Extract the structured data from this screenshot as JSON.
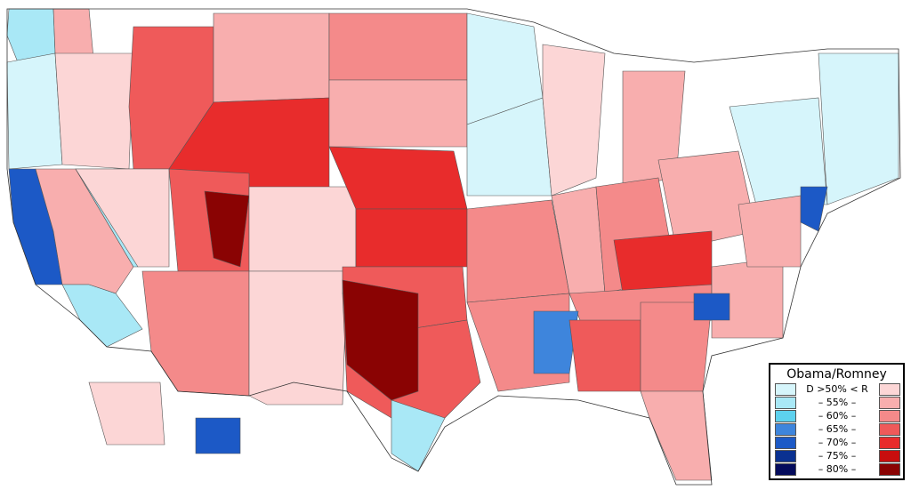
{
  "legend": {
    "title": "Obama/Romney",
    "rows": [
      {
        "label": "D >50% < R",
        "d_color": "#d6f5fb",
        "r_color": "#fcd6d6"
      },
      {
        "label": "–  55%  –",
        "d_color": "#a9e8f6",
        "r_color": "#f8aeae"
      },
      {
        "label": "–  60%  –",
        "d_color": "#5dd1ee",
        "r_color": "#f48a8a"
      },
      {
        "label": "–  65%  –",
        "d_color": "#3e85dc",
        "r_color": "#ef5a5a"
      },
      {
        "label": "–  70%  –",
        "d_color": "#1c59c6",
        "r_color": "#e82c2c"
      },
      {
        "label": "–  75%  –",
        "d_color": "#0a3191",
        "r_color": "#c80e0e"
      },
      {
        "label": "–  80%  –",
        "d_color": "#040b5c",
        "r_color": "#8a0303"
      }
    ]
  },
  "colors": {
    "border": "#555555",
    "d50": "#d6f5fb",
    "d55": "#a9e8f6",
    "d60": "#5dd1ee",
    "d65": "#3e85dc",
    "d70": "#1c59c6",
    "d75": "#0a3191",
    "d80": "#040b5c",
    "r50": "#fcd6d6",
    "r55": "#f8aeae",
    "r60": "#f48a8a",
    "r65": "#ef5a5a",
    "r70": "#e82c2c",
    "r75": "#c80e0e",
    "r80": "#8a0303"
  }
}
